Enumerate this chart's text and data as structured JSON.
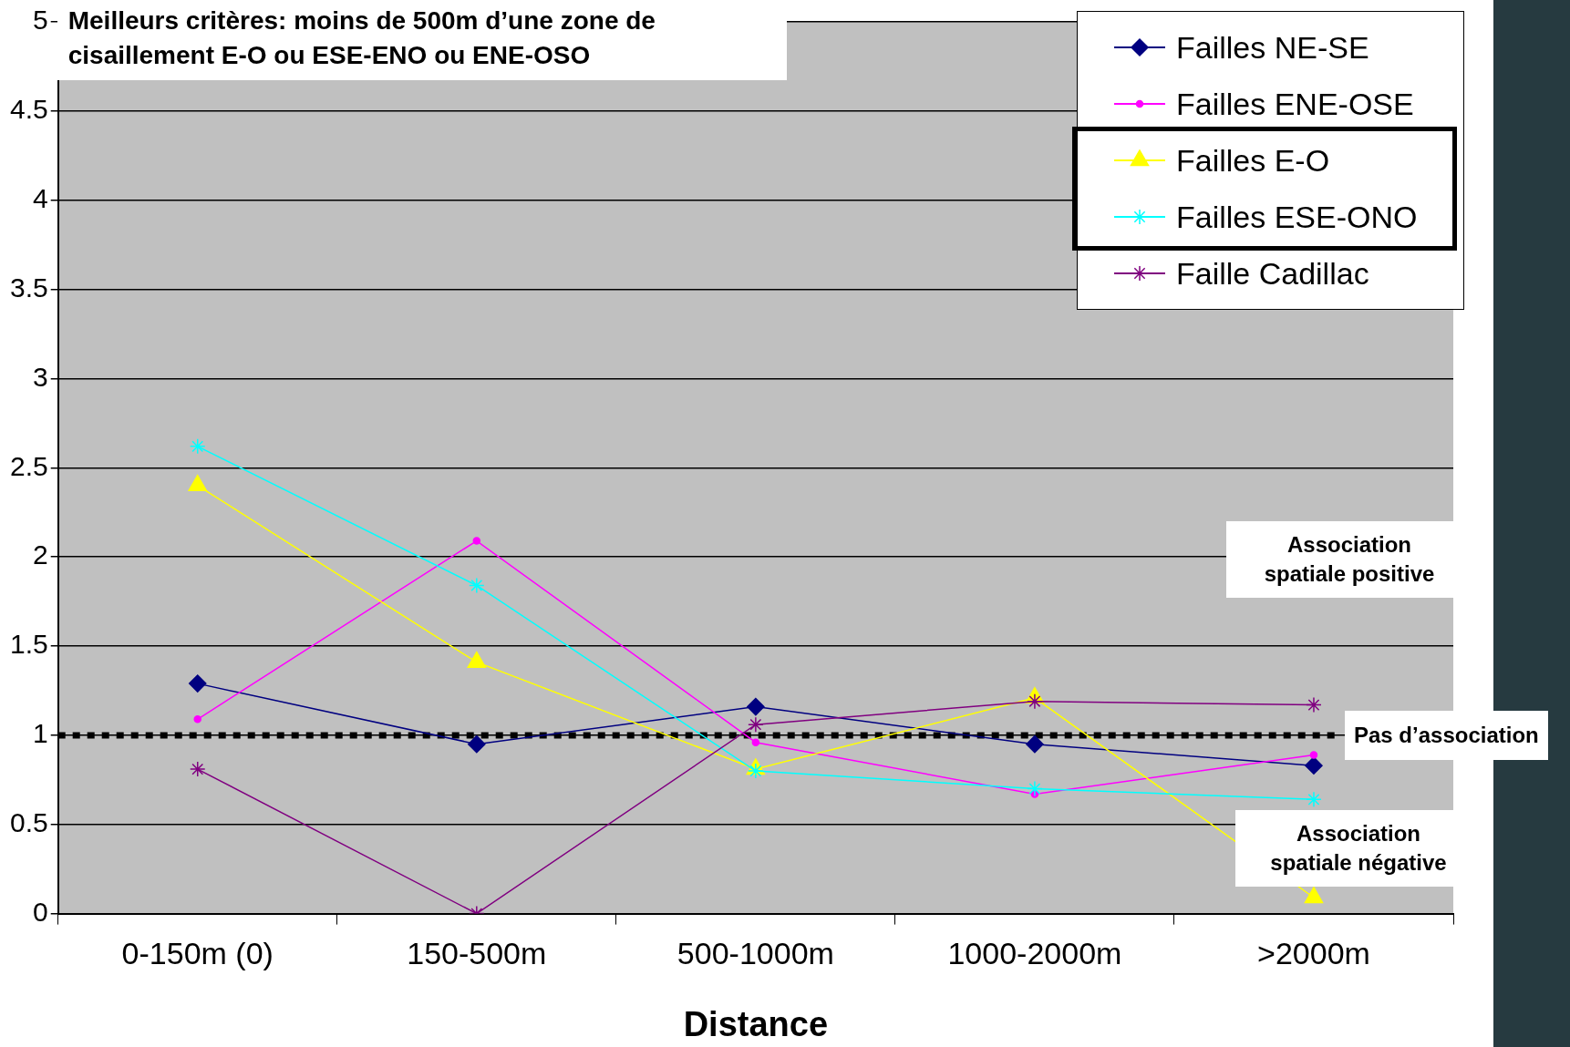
{
  "chart_data": {
    "type": "line",
    "title": "Meilleurs critères: moins de 500m d’une zone de cisaillement E-O ou ESE-ENO ou ENE-OSO",
    "xlabel": "Distance",
    "categories": [
      "0-150m (0)",
      "150-500m",
      "500-1000m",
      "1000-2000m",
      ">2000m"
    ],
    "series": [
      {
        "name": "Failles NE-SE",
        "color": "#000080",
        "marker": "diamond",
        "values": [
          1.29,
          0.95,
          1.16,
          0.95,
          0.83
        ]
      },
      {
        "name": "Failles ENE-OSE",
        "color": "#ff00ff",
        "marker": "circle",
        "values": [
          1.09,
          2.09,
          0.96,
          0.67,
          0.89
        ]
      },
      {
        "name": "Failles E-O",
        "color": "#ffff00",
        "marker": "triangle",
        "values": [
          2.4,
          1.41,
          0.81,
          1.21,
          0.09
        ]
      },
      {
        "name": "Failles ESE-ONO",
        "color": "#00ffff",
        "marker": "cross",
        "values": [
          2.62,
          1.84,
          0.8,
          0.7,
          0.64
        ]
      },
      {
        "name": "Faille Cadillac",
        "color": "#800080",
        "marker": "cross",
        "values": [
          0.81,
          0,
          1.06,
          1.19,
          1.17
        ]
      }
    ],
    "ylim": [
      0,
      5
    ],
    "yticks": [
      0,
      0.5,
      1,
      1.5,
      2,
      2.5,
      3,
      3.5,
      4,
      4.5,
      5
    ],
    "grid": "y",
    "legend": "top right",
    "ref_lines": [
      {
        "axis": "y",
        "value": 1,
        "label": "Pas d’association",
        "color": "#000000",
        "line_style": "dotted"
      }
    ],
    "annotations": [
      "Association spatiale positive",
      "Association spatiale négative"
    ]
  }
}
